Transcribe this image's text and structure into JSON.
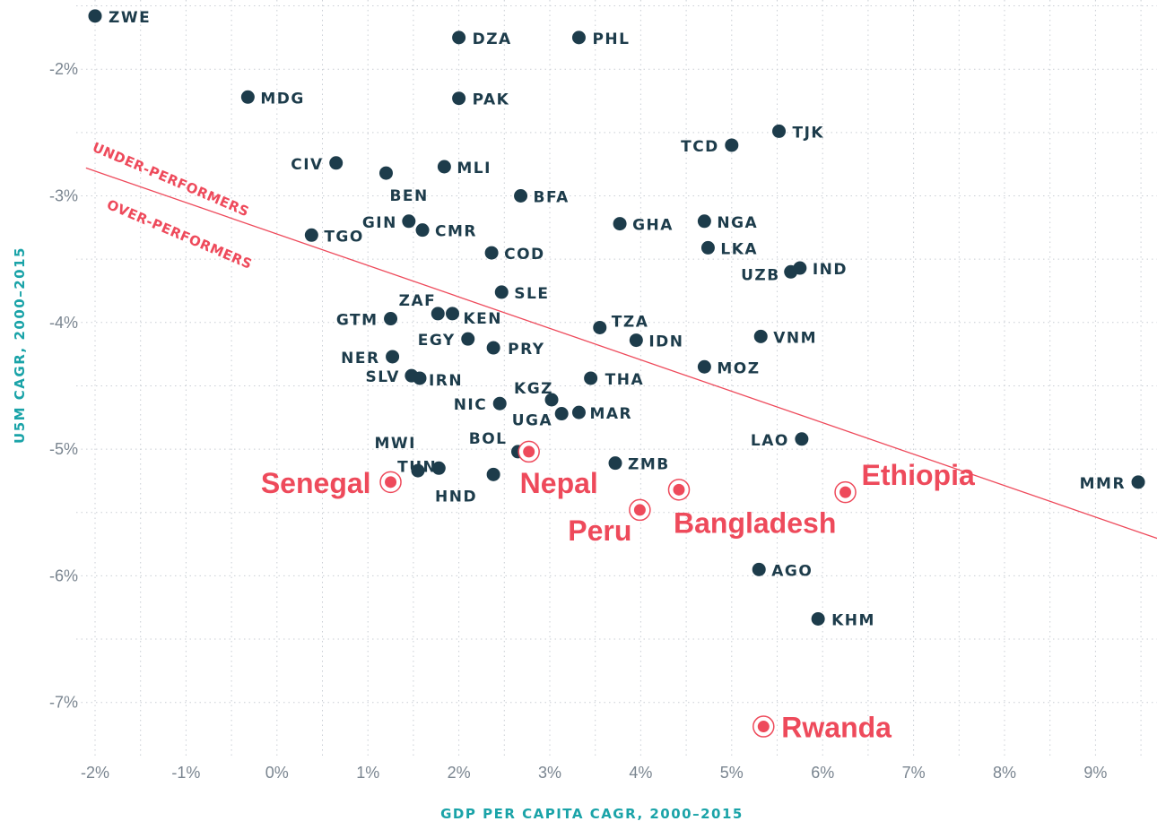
{
  "chart_data": {
    "type": "scatter",
    "title": "",
    "xlabel": "GDP PER CAPITA CAGR, 2000–2015",
    "ylabel": "U5M CAGR, 2000–2015",
    "xlim": [
      -2.2,
      9.7
    ],
    "ylim": [
      -7.45,
      -1.5
    ],
    "x_ticks": [
      -2,
      -1,
      0,
      1,
      2,
      3,
      4,
      5,
      6,
      7,
      8,
      9
    ],
    "x_tick_labels": [
      "-2%",
      "-1%",
      "0%",
      "1%",
      "2%",
      "3%",
      "4%",
      "5%",
      "6%",
      "7%",
      "8%",
      "9%"
    ],
    "y_ticks": [
      -2,
      -3,
      -4,
      -5,
      -6,
      -7
    ],
    "y_tick_labels": [
      "-2%",
      "-3%",
      "-4%",
      "-5%",
      "-6%",
      "-7%"
    ],
    "grid": true,
    "colors": {
      "point": "#1d3c4b",
      "highlight": "#ee4a5b",
      "axis_label": "#1aa3a8",
      "tick": "#7a8590"
    },
    "trend_line": {
      "x": [
        -2.1,
        9.7
      ],
      "y": [
        -2.78,
        -5.71
      ]
    },
    "region_labels": {
      "above": "UNDER-PERFORMERS",
      "below": "OVER-PERFORMERS"
    },
    "points": [
      {
        "label": "ZWE",
        "x": -2.0,
        "y": -1.58
      },
      {
        "label": "DZA",
        "x": 2.0,
        "y": -1.75
      },
      {
        "label": "PHL",
        "x": 3.32,
        "y": -1.75
      },
      {
        "label": "MDG",
        "x": -0.32,
        "y": -2.22
      },
      {
        "label": "PAK",
        "x": 2.0,
        "y": -2.23
      },
      {
        "label": "TJK",
        "x": 5.52,
        "y": -2.49
      },
      {
        "label": "TCD",
        "x": 5.0,
        "y": -2.6
      },
      {
        "label": "CIV",
        "x": 0.65,
        "y": -2.74
      },
      {
        "label": "MLI",
        "x": 1.84,
        "y": -2.77
      },
      {
        "label": "BEN",
        "x": 1.2,
        "y": -2.82
      },
      {
        "label": "BFA",
        "x": 2.68,
        "y": -3.0
      },
      {
        "label": "GIN",
        "x": 1.45,
        "y": -3.2
      },
      {
        "label": "CMR",
        "x": 1.6,
        "y": -3.27
      },
      {
        "label": "GHA",
        "x": 3.77,
        "y": -3.22
      },
      {
        "label": "NGA",
        "x": 4.7,
        "y": -3.2
      },
      {
        "label": "TGO",
        "x": 0.38,
        "y": -3.31
      },
      {
        "label": "COD",
        "x": 2.36,
        "y": -3.45
      },
      {
        "label": "LKA",
        "x": 4.74,
        "y": -3.41
      },
      {
        "label": "UZB",
        "x": 5.65,
        "y": -3.6
      },
      {
        "label": "IND",
        "x": 5.75,
        "y": -3.57
      },
      {
        "label": "SLE",
        "x": 2.47,
        "y": -3.76
      },
      {
        "label": "ZAF",
        "x": 1.77,
        "y": -3.93
      },
      {
        "label": "KEN",
        "x": 1.93,
        "y": -3.93
      },
      {
        "label": "GTM",
        "x": 1.25,
        "y": -3.97
      },
      {
        "label": "TZA",
        "x": 3.55,
        "y": -4.04
      },
      {
        "label": "EGY",
        "x": 2.1,
        "y": -4.13
      },
      {
        "label": "PRY",
        "x": 2.38,
        "y": -4.2
      },
      {
        "label": "IDN",
        "x": 3.95,
        "y": -4.14
      },
      {
        "label": "VNM",
        "x": 5.32,
        "y": -4.11
      },
      {
        "label": "NER",
        "x": 1.27,
        "y": -4.27
      },
      {
        "label": "MOZ",
        "x": 4.7,
        "y": -4.35
      },
      {
        "label": "SLV",
        "x": 1.48,
        "y": -4.42
      },
      {
        "label": "IRN",
        "x": 1.57,
        "y": -4.44
      },
      {
        "label": "THA",
        "x": 3.45,
        "y": -4.44
      },
      {
        "label": "KGZ",
        "x": 3.02,
        "y": -4.61
      },
      {
        "label": "NIC",
        "x": 2.45,
        "y": -4.64
      },
      {
        "label": "UGA",
        "x": 3.13,
        "y": -4.72
      },
      {
        "label": "MAR",
        "x": 3.32,
        "y": -4.71
      },
      {
        "label": "LAO",
        "x": 5.77,
        "y": -4.92
      },
      {
        "label": "BOL",
        "x": 2.65,
        "y": -5.02
      },
      {
        "label": "MWI",
        "x": 1.55,
        "y": -5.17
      },
      {
        "label": "TUN",
        "x": 1.78,
        "y": -5.15
      },
      {
        "label": "HND",
        "x": 2.38,
        "y": -5.2
      },
      {
        "label": "ZMB",
        "x": 3.72,
        "y": -5.11
      },
      {
        "label": "MMR",
        "x": 9.47,
        "y": -5.26
      },
      {
        "label": "AGO",
        "x": 5.3,
        "y": -5.95
      },
      {
        "label": "KHM",
        "x": 5.95,
        "y": -6.34
      }
    ],
    "highlights": [
      {
        "label": "Senegal",
        "x": 1.25,
        "y": -5.26
      },
      {
        "label": "Nepal",
        "x": 2.77,
        "y": -5.02
      },
      {
        "label": "Peru",
        "x": 3.99,
        "y": -5.48
      },
      {
        "label": "Bangladesh",
        "x": 4.42,
        "y": -5.32
      },
      {
        "label": "Ethiopia",
        "x": 6.25,
        "y": -5.34
      },
      {
        "label": "Rwanda",
        "x": 5.35,
        "y": -7.19
      }
    ]
  }
}
